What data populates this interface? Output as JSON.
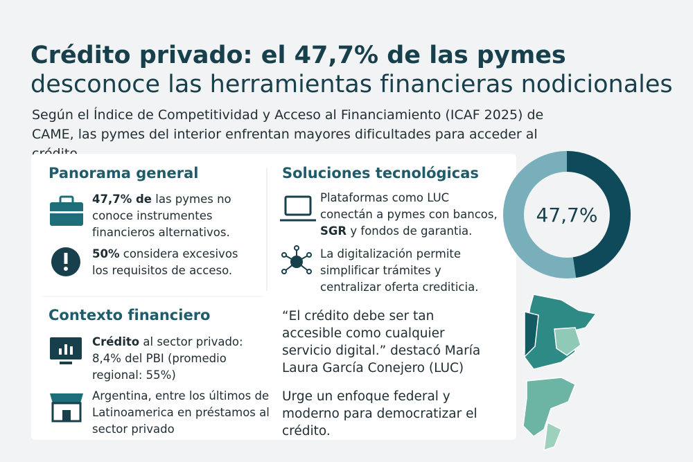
{
  "header": {
    "title": "Crédito privado: el 47,7% de las pymes",
    "title_line2": "desconoce las herramientas financieras nodicionales",
    "subtitle": "Según el Índice de Competitividad y Acceso al Financiamiento (ICAF 2025) de CAME, las pymes del interior enfrentan mayores dificultades para acceder al crédito."
  },
  "sections": [
    {
      "heading": "Panorama general",
      "items": [
        [
          {
            "text": "47,7% de",
            "bold": true
          },
          {
            "text": " las pymes no conoce instrumentes financieros alternativos.",
            "bold": false
          }
        ],
        [
          {
            "text": "50%",
            "bold": true
          },
          {
            "text": " considera excesivos los requisitos de acceso.",
            "bold": false
          }
        ]
      ]
    },
    {
      "heading": "Soluciones tecnológicas",
      "items": [
        [
          {
            "text": "Plataformas como LUC conectán a pymes con bancos, ",
            "bold": false
          },
          {
            "text": "SGR",
            "bold": true
          },
          {
            "text": " y fondos de garantia.",
            "bold": false
          }
        ],
        [
          {
            "text": "La digitalización permite simplificar trámites y centralizar oferta crediticia.",
            "bold": false
          }
        ]
      ]
    },
    {
      "heading": "Contexto financiero",
      "items": [
        [
          {
            "text": "Crédito",
            "bold": true
          },
          {
            "text": " al sector privado: 8,4% del PBI (promedio regional: 55%)",
            "bold": false
          }
        ],
        [
          {
            "text": "Argentina, entre los últimos de Latinoamerica en préstamos al sector privado",
            "bold": false
          }
        ]
      ]
    }
  ],
  "quote": "“El crédito debe ser tan accesible como cualquier servicio digital.” destacó María Laura García Conejero (LUC)",
  "conclusion": "Urge un enfoque federal y moderno para democratizar el crédito.",
  "donut": {
    "value": 47.7,
    "label": "47,7%",
    "max": 100,
    "color": "#0f4a5a",
    "rest_color": "#79aebb"
  }
}
